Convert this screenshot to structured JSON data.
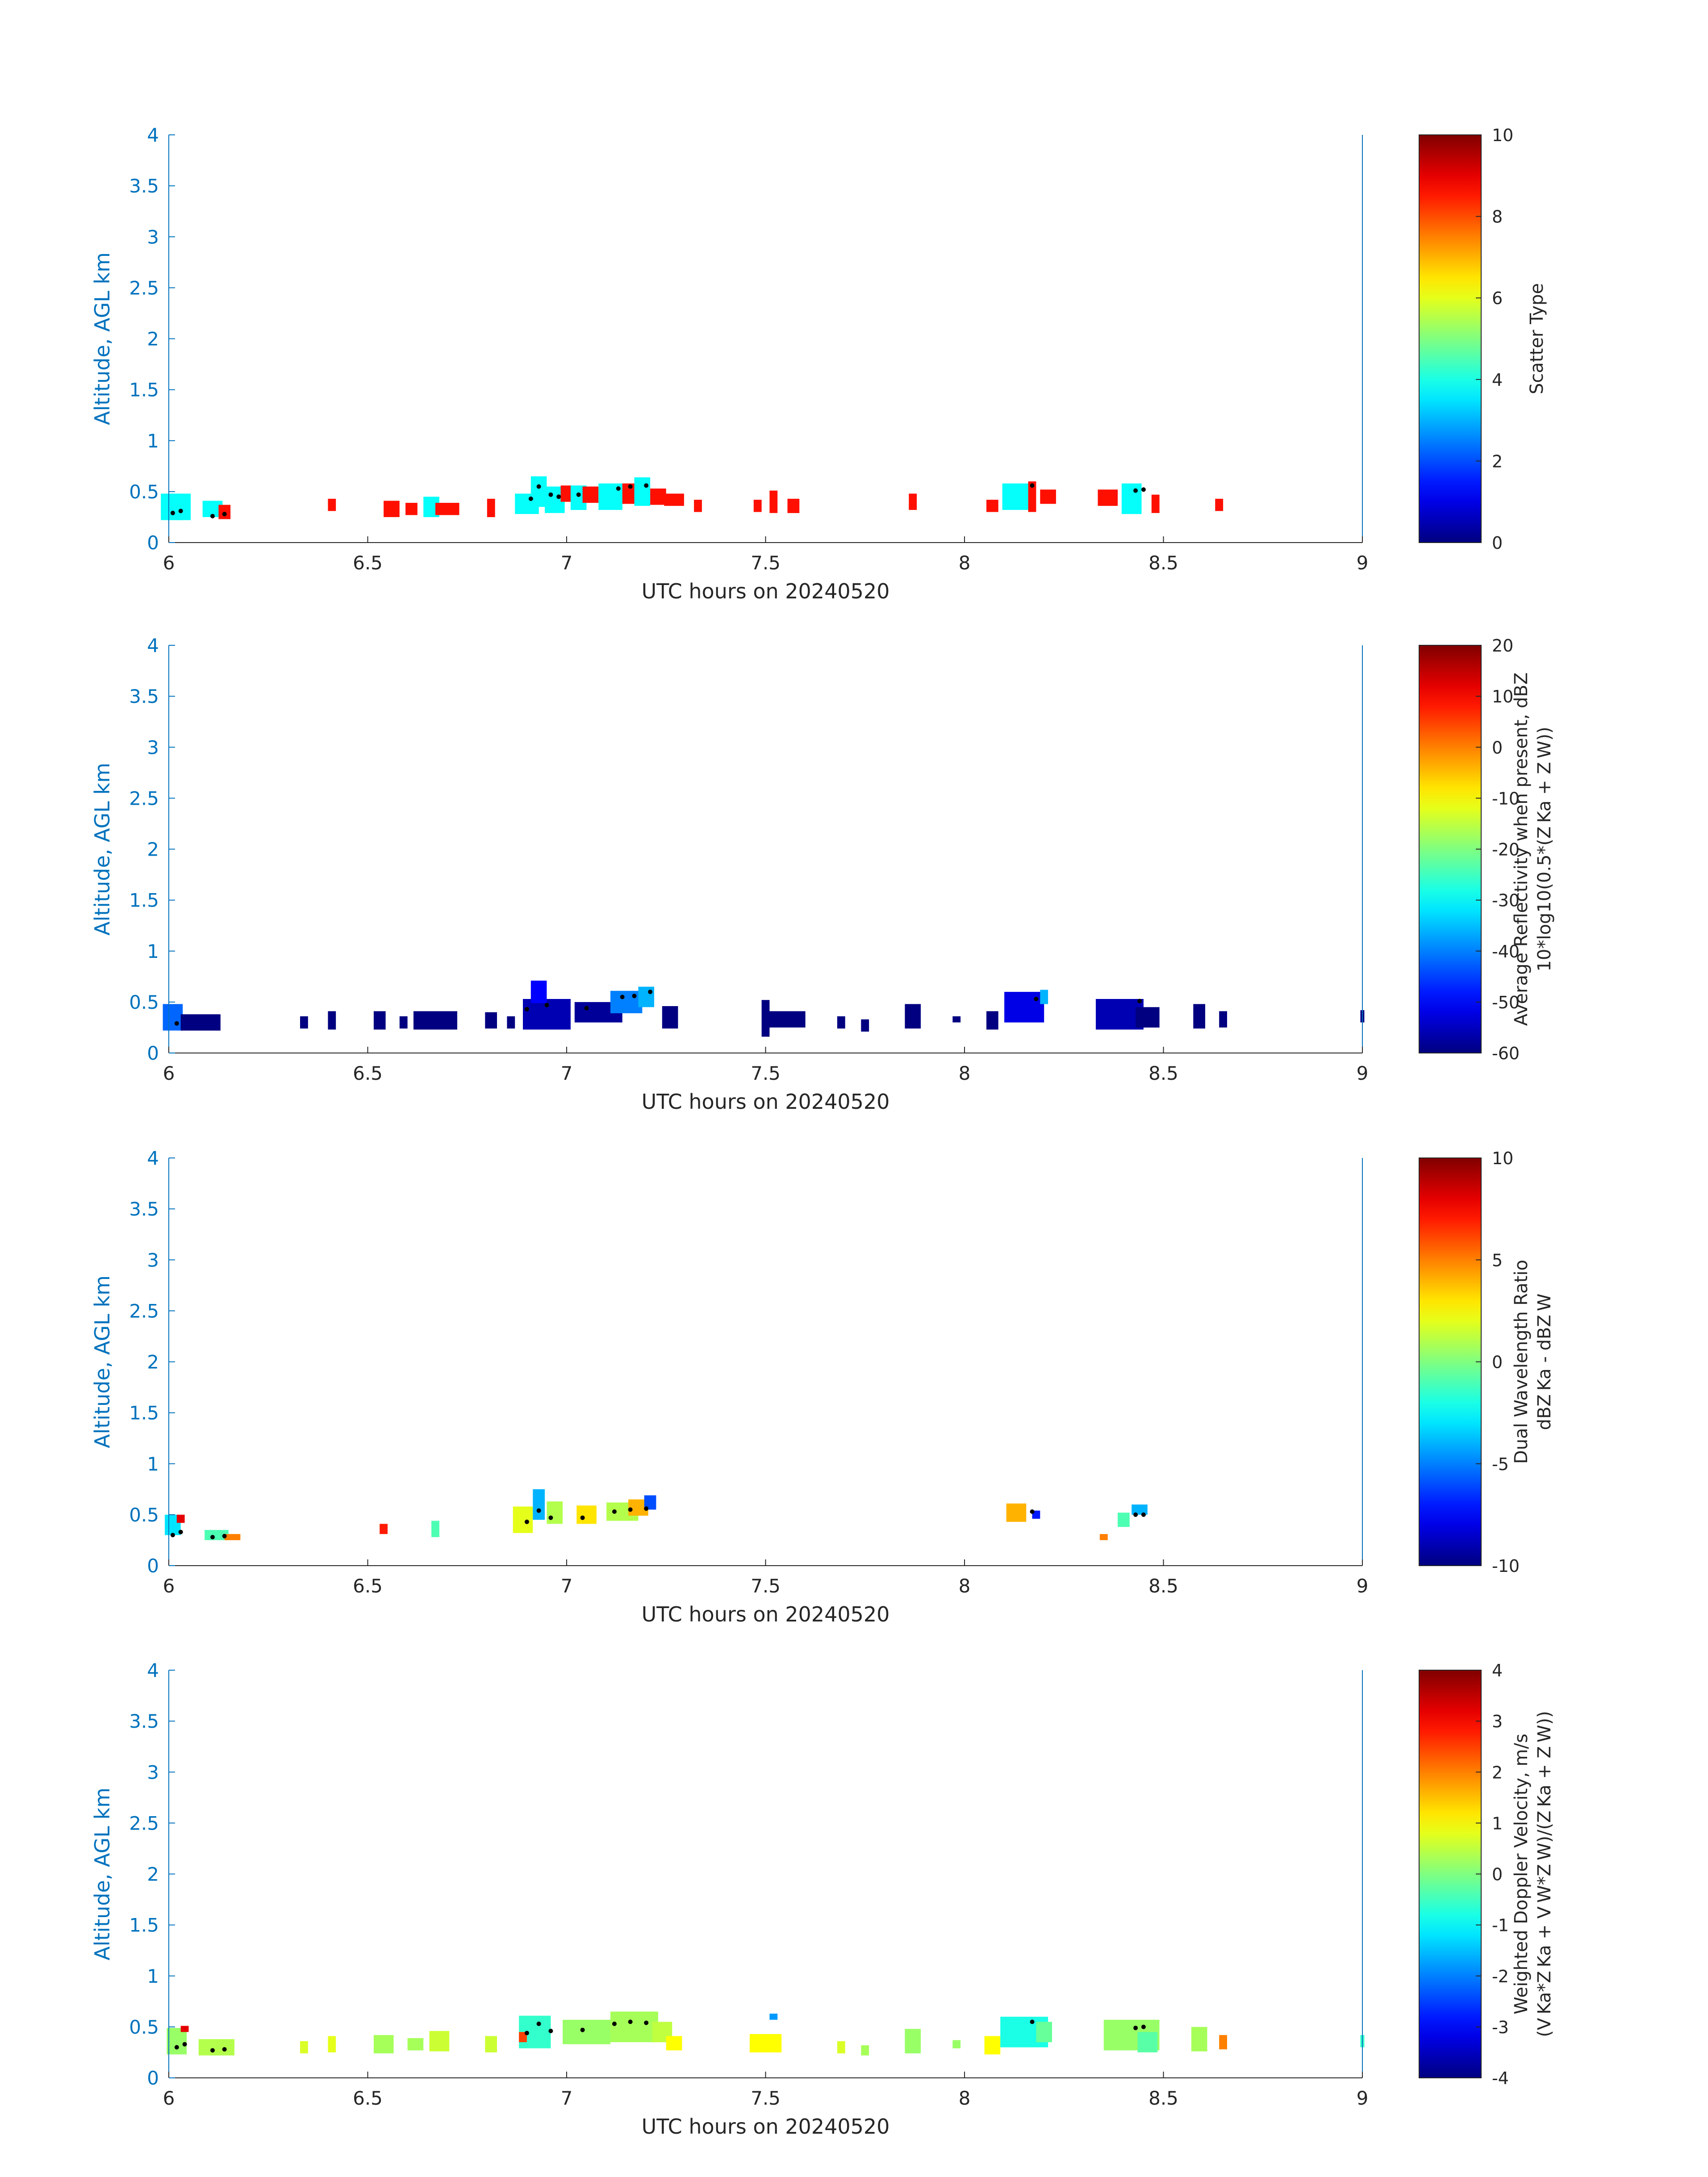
{
  "figure": {
    "xlabel": "UTC hours on 20240520",
    "ylabel": "Altitude, AGL km",
    "x_ticks": [
      "6",
      "6.5",
      "7",
      "7.5",
      "8",
      "8.5",
      "9"
    ],
    "y_ticks": [
      "0",
      "0.5",
      "1",
      "1.5",
      "2",
      "2.5",
      "3",
      "3.5",
      "4"
    ],
    "xlim": [
      6,
      9
    ],
    "ylim": [
      0,
      4
    ],
    "axis_color": "#0072BD",
    "colormap": "jet"
  },
  "chart_data": [
    {
      "type": "heatmap",
      "xlabel": "UTC hours on 20240520",
      "ylabel": "Altitude, AGL km",
      "xlim": [
        6,
        9
      ],
      "ylim": [
        0,
        4
      ],
      "colorbar": {
        "label_lines": [
          "Scatter Type"
        ],
        "range": [
          0,
          10
        ],
        "ticks": [
          "0",
          "2",
          "4",
          "6",
          "8",
          "10"
        ]
      },
      "cells": [
        [
          6.01,
          0.35,
          3.8,
          0.06,
          0.26
        ],
        [
          6.03,
          0.35,
          3.8,
          0.05,
          0.26
        ],
        [
          6.11,
          0.33,
          3.8,
          0.05,
          0.16
        ],
        [
          6.14,
          0.3,
          8.6,
          0.03,
          0.14
        ],
        [
          6.41,
          0.37,
          8.6,
          0.02,
          0.12
        ],
        [
          6.56,
          0.33,
          8.6,
          0.04,
          0.16
        ],
        [
          6.61,
          0.33,
          8.6,
          0.03,
          0.12
        ],
        [
          6.66,
          0.35,
          3.8,
          0.04,
          0.2
        ],
        [
          6.7,
          0.33,
          8.6,
          0.06,
          0.12
        ],
        [
          6.81,
          0.34,
          8.6,
          0.02,
          0.18
        ],
        [
          6.9,
          0.38,
          3.8,
          0.06,
          0.2
        ],
        [
          6.93,
          0.5,
          3.8,
          0.04,
          0.3
        ],
        [
          6.97,
          0.42,
          3.8,
          0.05,
          0.26
        ],
        [
          7.0,
          0.48,
          8.6,
          0.03,
          0.16
        ],
        [
          7.03,
          0.44,
          3.8,
          0.04,
          0.24
        ],
        [
          7.06,
          0.47,
          8.6,
          0.04,
          0.16
        ],
        [
          7.11,
          0.45,
          3.8,
          0.06,
          0.26
        ],
        [
          7.16,
          0.48,
          8.6,
          0.04,
          0.2
        ],
        [
          7.19,
          0.5,
          3.8,
          0.04,
          0.28
        ],
        [
          7.23,
          0.45,
          8.6,
          0.04,
          0.16
        ],
        [
          7.27,
          0.42,
          8.6,
          0.05,
          0.12
        ],
        [
          7.33,
          0.36,
          8.6,
          0.02,
          0.12
        ],
        [
          7.48,
          0.36,
          8.6,
          0.02,
          0.12
        ],
        [
          7.52,
          0.4,
          8.6,
          0.02,
          0.22
        ],
        [
          7.57,
          0.36,
          8.6,
          0.03,
          0.14
        ],
        [
          7.87,
          0.4,
          8.6,
          0.02,
          0.16
        ],
        [
          8.07,
          0.36,
          8.6,
          0.03,
          0.12
        ],
        [
          8.13,
          0.45,
          3.8,
          0.07,
          0.26
        ],
        [
          8.17,
          0.45,
          8.6,
          0.02,
          0.3
        ],
        [
          8.21,
          0.45,
          8.6,
          0.04,
          0.14
        ],
        [
          8.36,
          0.44,
          8.6,
          0.05,
          0.16
        ],
        [
          8.42,
          0.43,
          3.8,
          0.05,
          0.3
        ],
        [
          8.48,
          0.38,
          8.6,
          0.02,
          0.18
        ],
        [
          8.64,
          0.37,
          8.6,
          0.02,
          0.12
        ]
      ],
      "dots": [
        [
          6.01,
          0.29
        ],
        [
          6.03,
          0.31
        ],
        [
          6.11,
          0.26
        ],
        [
          6.14,
          0.28
        ],
        [
          6.91,
          0.43
        ],
        [
          6.93,
          0.55
        ],
        [
          6.96,
          0.47
        ],
        [
          6.98,
          0.45
        ],
        [
          7.03,
          0.47
        ],
        [
          7.13,
          0.53
        ],
        [
          7.16,
          0.55
        ],
        [
          7.2,
          0.56
        ],
        [
          8.17,
          0.56
        ],
        [
          8.43,
          0.51
        ],
        [
          8.45,
          0.52
        ]
      ]
    },
    {
      "type": "heatmap",
      "xlabel": "UTC hours on 20240520",
      "ylabel": "Altitude, AGL km",
      "xlim": [
        6,
        9
      ],
      "ylim": [
        0,
        4
      ],
      "colorbar": {
        "label_lines": [
          "Average Reflectivity when present, dBZ",
          "10*log10(0.5*(Z Ka + Z W))"
        ],
        "range": [
          -60,
          20
        ],
        "ticks": [
          "-60",
          "-50",
          "-40",
          "-30",
          "-20",
          "-10",
          "0",
          "10",
          "20"
        ]
      },
      "cells": [
        [
          6.01,
          0.35,
          -42,
          0.05,
          0.26
        ],
        [
          6.08,
          0.3,
          -60,
          0.1,
          0.16
        ],
        [
          6.34,
          0.3,
          -60,
          0.02,
          0.12
        ],
        [
          6.41,
          0.32,
          -60,
          0.02,
          0.18
        ],
        [
          6.53,
          0.32,
          -60,
          0.03,
          0.18
        ],
        [
          6.59,
          0.3,
          -60,
          0.02,
          0.12
        ],
        [
          6.67,
          0.32,
          -60,
          0.11,
          0.18
        ],
        [
          6.81,
          0.32,
          -60,
          0.03,
          0.16
        ],
        [
          6.86,
          0.3,
          -60,
          0.02,
          0.12
        ],
        [
          6.95,
          0.38,
          -56,
          0.12,
          0.3
        ],
        [
          6.93,
          0.6,
          -50,
          0.04,
          0.22
        ],
        [
          7.08,
          0.4,
          -58,
          0.12,
          0.2
        ],
        [
          7.15,
          0.5,
          -40,
          0.08,
          0.22
        ],
        [
          7.2,
          0.55,
          -36,
          0.04,
          0.2
        ],
        [
          7.26,
          0.35,
          -60,
          0.04,
          0.22
        ],
        [
          7.5,
          0.34,
          -60,
          0.02,
          0.36
        ],
        [
          7.55,
          0.33,
          -60,
          0.1,
          0.16
        ],
        [
          7.69,
          0.3,
          -60,
          0.02,
          0.12
        ],
        [
          7.75,
          0.27,
          -60,
          0.02,
          0.12
        ],
        [
          7.87,
          0.36,
          -60,
          0.04,
          0.24
        ],
        [
          7.98,
          0.33,
          -60,
          0.02,
          0.06
        ],
        [
          8.07,
          0.32,
          -60,
          0.03,
          0.18
        ],
        [
          8.15,
          0.45,
          -52,
          0.1,
          0.3
        ],
        [
          8.2,
          0.55,
          -36,
          0.02,
          0.14
        ],
        [
          8.39,
          0.38,
          -56,
          0.12,
          0.3
        ],
        [
          8.46,
          0.35,
          -60,
          0.06,
          0.2
        ],
        [
          8.59,
          0.36,
          -60,
          0.03,
          0.24
        ],
        [
          8.65,
          0.33,
          -60,
          0.02,
          0.16
        ],
        [
          9.0,
          0.36,
          -60,
          0.01,
          0.12
        ]
      ],
      "dots": [
        [
          6.02,
          0.29
        ],
        [
          6.9,
          0.43
        ],
        [
          6.95,
          0.47
        ],
        [
          7.05,
          0.44
        ],
        [
          7.14,
          0.55
        ],
        [
          7.17,
          0.56
        ],
        [
          7.21,
          0.6
        ],
        [
          8.18,
          0.53
        ],
        [
          8.44,
          0.51
        ]
      ]
    },
    {
      "type": "heatmap",
      "xlabel": "UTC hours on 20240520",
      "ylabel": "Altitude, AGL km",
      "xlim": [
        6,
        9
      ],
      "ylim": [
        0,
        4
      ],
      "colorbar": {
        "label_lines": [
          "Dual Wavelength Ratio",
          "dBZ Ka - dBZ W"
        ],
        "range": [
          -10,
          10
        ],
        "ticks": [
          "-10",
          "-5",
          "0",
          "5",
          "10"
        ]
      },
      "cells": [
        [
          6.01,
          0.4,
          -3,
          0.04,
          0.2
        ],
        [
          6.03,
          0.46,
          8,
          0.02,
          0.08
        ],
        [
          6.12,
          0.3,
          -1,
          0.06,
          0.1
        ],
        [
          6.16,
          0.28,
          5,
          0.04,
          0.06
        ],
        [
          6.54,
          0.36,
          7,
          0.02,
          0.1
        ],
        [
          6.67,
          0.36,
          -1,
          0.02,
          0.16
        ],
        [
          6.89,
          0.45,
          2,
          0.05,
          0.26
        ],
        [
          6.93,
          0.6,
          -4,
          0.03,
          0.3
        ],
        [
          6.97,
          0.52,
          1,
          0.04,
          0.22
        ],
        [
          7.05,
          0.5,
          3,
          0.05,
          0.18
        ],
        [
          7.14,
          0.53,
          1,
          0.08,
          0.18
        ],
        [
          7.18,
          0.57,
          4,
          0.05,
          0.16
        ],
        [
          7.21,
          0.62,
          -6,
          0.03,
          0.14
        ],
        [
          8.13,
          0.52,
          4,
          0.05,
          0.18
        ],
        [
          8.18,
          0.5,
          -7,
          0.02,
          0.08
        ],
        [
          8.35,
          0.28,
          5,
          0.02,
          0.06
        ],
        [
          8.4,
          0.45,
          -1,
          0.03,
          0.14
        ],
        [
          8.44,
          0.55,
          -4,
          0.04,
          0.1
        ]
      ],
      "dots": [
        [
          6.01,
          0.3
        ],
        [
          6.03,
          0.33
        ],
        [
          6.11,
          0.28
        ],
        [
          6.14,
          0.29
        ],
        [
          6.9,
          0.43
        ],
        [
          6.93,
          0.54
        ],
        [
          6.96,
          0.47
        ],
        [
          7.04,
          0.47
        ],
        [
          7.12,
          0.53
        ],
        [
          7.16,
          0.55
        ],
        [
          7.2,
          0.56
        ],
        [
          8.17,
          0.53
        ],
        [
          8.43,
          0.5
        ],
        [
          8.45,
          0.5
        ]
      ]
    },
    {
      "type": "heatmap",
      "xlabel": "UTC hours on 20240520",
      "ylabel": "Altitude, AGL km",
      "xlim": [
        6,
        9
      ],
      "ylim": [
        0,
        4
      ],
      "colorbar": {
        "label_lines": [
          "Weighted Doppler Velocity, m/s",
          "(V Ka*Z Ka + V W*Z W)/(Z Ka + Z W))"
        ],
        "range": [
          -4,
          4
        ],
        "ticks": [
          "-4",
          "-3",
          "-2",
          "-1",
          "0",
          "1",
          "2",
          "3",
          "4"
        ]
      },
      "cells": [
        [
          6.02,
          0.36,
          0.2,
          0.05,
          0.26
        ],
        [
          6.04,
          0.48,
          3.2,
          0.02,
          0.06
        ],
        [
          6.12,
          0.3,
          0.4,
          0.09,
          0.16
        ],
        [
          6.34,
          0.3,
          0.7,
          0.02,
          0.12
        ],
        [
          6.41,
          0.33,
          0.8,
          0.02,
          0.16
        ],
        [
          6.54,
          0.33,
          0.3,
          0.05,
          0.18
        ],
        [
          6.62,
          0.33,
          0.3,
          0.04,
          0.12
        ],
        [
          6.68,
          0.36,
          0.6,
          0.05,
          0.2
        ],
        [
          6.81,
          0.33,
          0.6,
          0.03,
          0.16
        ],
        [
          6.92,
          0.45,
          -0.6,
          0.08,
          0.32
        ],
        [
          6.89,
          0.4,
          2.5,
          0.02,
          0.1
        ],
        [
          7.05,
          0.45,
          0.2,
          0.12,
          0.24
        ],
        [
          7.17,
          0.5,
          0.3,
          0.12,
          0.3
        ],
        [
          7.24,
          0.45,
          0.5,
          0.05,
          0.2
        ],
        [
          7.27,
          0.34,
          1.0,
          0.04,
          0.14
        ],
        [
          7.5,
          0.34,
          1.0,
          0.08,
          0.18
        ],
        [
          7.52,
          0.6,
          -1.8,
          0.02,
          0.06
        ],
        [
          7.69,
          0.3,
          0.7,
          0.02,
          0.12
        ],
        [
          7.75,
          0.27,
          0.3,
          0.02,
          0.1
        ],
        [
          7.87,
          0.36,
          0.2,
          0.04,
          0.24
        ],
        [
          7.98,
          0.33,
          0.2,
          0.02,
          0.08
        ],
        [
          8.07,
          0.32,
          1.0,
          0.04,
          0.18
        ],
        [
          8.15,
          0.45,
          -0.8,
          0.12,
          0.3
        ],
        [
          8.2,
          0.45,
          -0.2,
          0.04,
          0.2
        ],
        [
          8.37,
          0.35,
          2.6,
          0.02,
          0.1
        ],
        [
          8.42,
          0.42,
          0.2,
          0.14,
          0.3
        ],
        [
          8.46,
          0.35,
          -0.3,
          0.05,
          0.2
        ],
        [
          8.59,
          0.38,
          0.3,
          0.04,
          0.24
        ],
        [
          8.65,
          0.35,
          2.0,
          0.02,
          0.14
        ],
        [
          9.0,
          0.36,
          -0.6,
          0.01,
          0.12
        ]
      ],
      "dots": [
        [
          6.02,
          0.3
        ],
        [
          6.04,
          0.33
        ],
        [
          6.11,
          0.27
        ],
        [
          6.14,
          0.28
        ],
        [
          6.9,
          0.44
        ],
        [
          6.93,
          0.53
        ],
        [
          6.96,
          0.46
        ],
        [
          7.04,
          0.47
        ],
        [
          7.12,
          0.53
        ],
        [
          7.16,
          0.55
        ],
        [
          7.2,
          0.54
        ],
        [
          8.17,
          0.55
        ],
        [
          8.43,
          0.49
        ],
        [
          8.45,
          0.5
        ]
      ]
    }
  ]
}
